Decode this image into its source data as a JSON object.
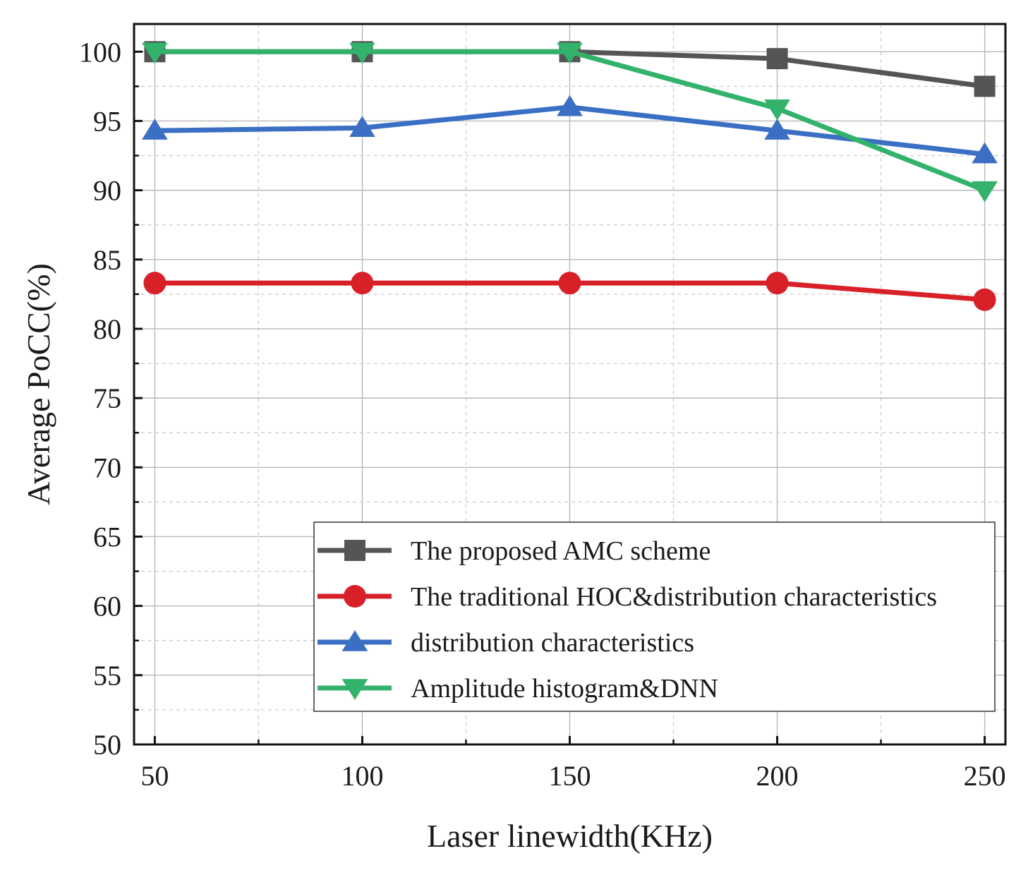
{
  "chart_data": {
    "type": "line",
    "title": "",
    "xlabel": "Laser linewidth(KHz)",
    "ylabel": "Average PoCC(%)",
    "x": [
      50,
      100,
      150,
      200,
      250
    ],
    "x_ticks": [
      50,
      100,
      150,
      200,
      250
    ],
    "y_ticks": [
      50,
      55,
      60,
      65,
      70,
      75,
      80,
      85,
      90,
      95,
      100
    ],
    "xlim": [
      45,
      255
    ],
    "ylim": [
      50,
      102
    ],
    "grid": true,
    "legend_position": "bottom-right",
    "series": [
      {
        "name": "The proposed AMC scheme",
        "marker": "square",
        "color": "#555555",
        "values": [
          100,
          100,
          100,
          99.5,
          97.5
        ]
      },
      {
        "name": "The traditional HOC&distribution characteristics",
        "marker": "circle",
        "color": "#d72027",
        "values": [
          83.3,
          83.3,
          83.3,
          83.3,
          82.1
        ]
      },
      {
        "name": "distribution  characteristics",
        "marker": "triangle-up",
        "color": "#3a6fc4",
        "values": [
          94.3,
          94.5,
          96.0,
          94.3,
          92.6
        ]
      },
      {
        "name": "Amplitude histogram&DNN",
        "marker": "triangle-down",
        "color": "#33b26b",
        "values": [
          100,
          100,
          100,
          95.9,
          90.0
        ]
      }
    ]
  }
}
